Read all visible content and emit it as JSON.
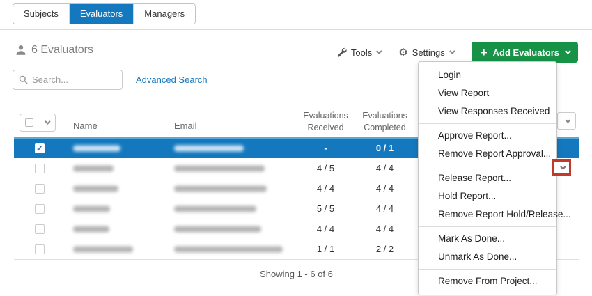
{
  "tabs": [
    {
      "label": "Subjects",
      "active": false
    },
    {
      "label": "Evaluators",
      "active": true
    },
    {
      "label": "Managers",
      "active": false
    }
  ],
  "header": {
    "count_label": "6 Evaluators"
  },
  "toolbar": {
    "tools_label": "Tools",
    "settings_label": "Settings",
    "add_label": "Add Evaluators"
  },
  "icons": {
    "gear": "⚙",
    "plus": "+"
  },
  "search": {
    "placeholder": "Search...",
    "advanced_label": "Advanced Search"
  },
  "table": {
    "columns": {
      "name": "Name",
      "email": "Email",
      "received_l1": "Evaluations",
      "received_l2": "Received",
      "completed_l1": "Evaluations",
      "completed_l2": "Completed"
    },
    "rows": [
      {
        "selected": true,
        "checked": true,
        "name_redacted": true,
        "email_redacted": true,
        "name_bar_w": 68,
        "email_bar_w": 100,
        "received": "-",
        "completed": "0 / 1"
      },
      {
        "selected": false,
        "checked": false,
        "name_redacted": true,
        "email_redacted": true,
        "name_bar_w": 58,
        "email_bar_w": 130,
        "received": "4 / 5",
        "completed": "4 / 4"
      },
      {
        "selected": false,
        "checked": false,
        "name_redacted": true,
        "email_redacted": true,
        "name_bar_w": 65,
        "email_bar_w": 133,
        "received": "4 / 4",
        "completed": "4 / 4"
      },
      {
        "selected": false,
        "checked": false,
        "name_redacted": true,
        "email_redacted": true,
        "name_bar_w": 53,
        "email_bar_w": 118,
        "received": "5 / 5",
        "completed": "4 / 4"
      },
      {
        "selected": false,
        "checked": false,
        "name_redacted": true,
        "email_redacted": true,
        "name_bar_w": 52,
        "email_bar_w": 125,
        "received": "4 / 4",
        "completed": "4 / 4"
      },
      {
        "selected": false,
        "checked": false,
        "name_redacted": true,
        "email_redacted": true,
        "name_bar_w": 86,
        "email_bar_w": 156,
        "received": "1 / 1",
        "completed": "2 / 2"
      }
    ],
    "footer": "Showing 1 - 6 of 6"
  },
  "menu": {
    "groups": [
      [
        "Login",
        "View Report",
        "View Responses Received"
      ],
      [
        "Approve Report...",
        "Remove Report Approval..."
      ],
      [
        "Release Report...",
        "Hold Report...",
        "Remove Report Hold/Release..."
      ],
      [
        "Mark As Done...",
        "Unmark As Done..."
      ],
      [
        "Remove From Project..."
      ]
    ]
  },
  "colors": {
    "accent_blue": "#1478be",
    "selected_row_blue": "#1478be",
    "add_button_green": "#179247",
    "link_blue": "#1779c0",
    "annotation_red": "#c0392b"
  }
}
